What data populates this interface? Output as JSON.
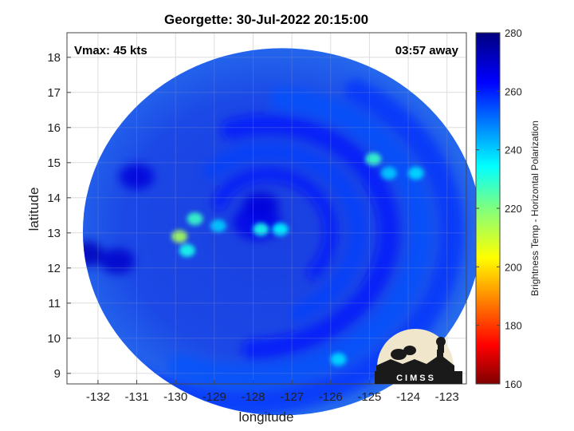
{
  "chart_data": {
    "type": "heatmap",
    "title": "Georgette: 30-Jul-2022 20:15:00",
    "xlabel": "longitude",
    "ylabel": "latitude",
    "xlim": [
      -132.8,
      -122.5
    ],
    "ylim": [
      8.7,
      18.7
    ],
    "x_ticks": [
      -132,
      -131,
      -130,
      -129,
      -128,
      -127,
      -126,
      -125,
      -124,
      -123
    ],
    "y_ticks": [
      9,
      10,
      11,
      12,
      13,
      14,
      15,
      16,
      17,
      18
    ],
    "annotations": {
      "vmax": "Vmax: 45 kts",
      "away": "03:57 away"
    },
    "colorbar": {
      "label": "Brightness Temp - Horizontal Polarization",
      "min": 160,
      "max": 280,
      "ticks": [
        160,
        180,
        200,
        220,
        240,
        260,
        280
      ]
    },
    "grid": true,
    "swath_center": [
      -127.25,
      13.1
    ],
    "eye_center": [
      -127.9,
      13.3
    ],
    "warm_features": [
      {
        "lon": -129.9,
        "lat": 12.9,
        "value": 215
      },
      {
        "lon": -129.5,
        "lat": 13.4,
        "value": 228
      },
      {
        "lon": -129.7,
        "lat": 12.5,
        "value": 232
      },
      {
        "lon": -127.8,
        "lat": 13.1,
        "value": 232
      },
      {
        "lon": -127.3,
        "lat": 13.1,
        "value": 235
      },
      {
        "lon": -124.9,
        "lat": 15.1,
        "value": 228
      },
      {
        "lon": -124.5,
        "lat": 14.7,
        "value": 240
      },
      {
        "lon": -123.8,
        "lat": 14.7,
        "value": 238
      },
      {
        "lon": -125.8,
        "lat": 9.4,
        "value": 238
      },
      {
        "lon": -128.9,
        "lat": 13.2,
        "value": 240
      }
    ],
    "cold_features": [
      {
        "lon": -132.3,
        "lat": 12.4,
        "value": 272
      },
      {
        "lon": -131.5,
        "lat": 12.2,
        "value": 270
      },
      {
        "lon": -131.0,
        "lat": 14.6,
        "value": 268
      },
      {
        "lon": -127.8,
        "lat": 13.8,
        "value": 268
      }
    ]
  },
  "logo": {
    "text": "CIMSS"
  }
}
